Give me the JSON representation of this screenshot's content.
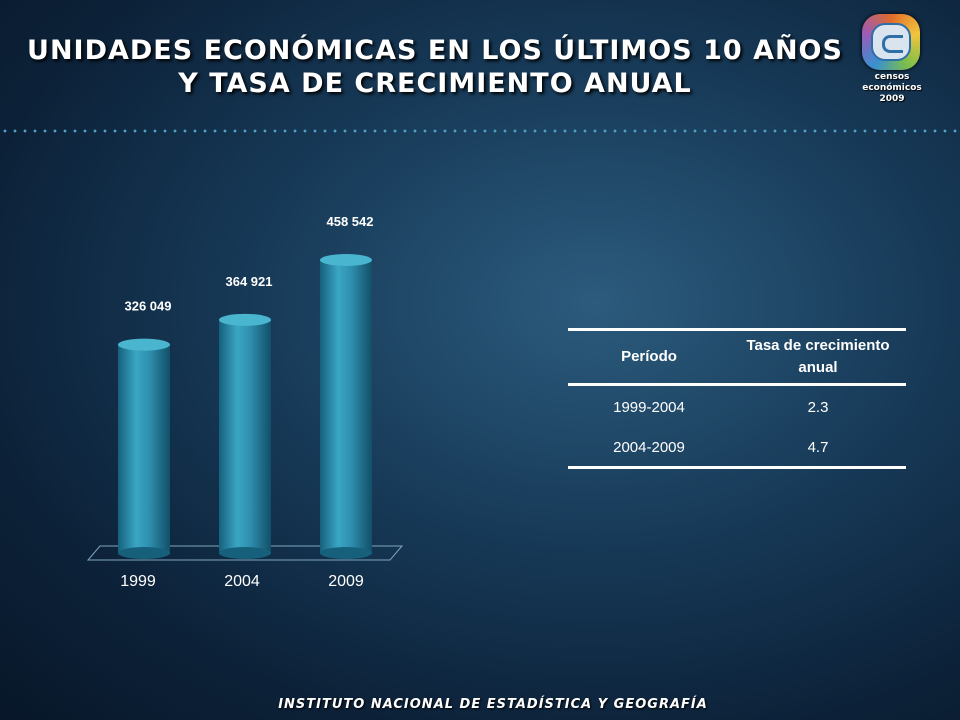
{
  "slide": {
    "title_line1": "UNIDADES ECONÓMICAS EN LOS ÚLTIMOS 10 AÑOS",
    "title_line2": "Y TASA DE CRECIMIENTO ANUAL",
    "footer": "INSTITUTO NACIONAL DE ESTADÍSTICA Y GEOGRAFÍA"
  },
  "logo": {
    "icon": "censos-economicos-logo-icon",
    "line1": "censos",
    "line2": "económicos",
    "line3": "2009"
  },
  "colors": {
    "bar": "#2e8fae",
    "bar_light": "#4ab5cf",
    "bar_dark": "#16607c"
  },
  "chart_data": {
    "type": "bar",
    "categories": [
      "1999",
      "2004",
      "2009"
    ],
    "values": [
      326049,
      364921,
      458542
    ],
    "value_labels": [
      "326 049",
      "364 921",
      "458 542"
    ],
    "title": "",
    "xlabel": "",
    "ylabel": "",
    "ylim": [
      0,
      500000
    ],
    "grid": false,
    "legend": "none"
  },
  "table": {
    "headers": [
      "Período",
      "Tasa de crecimiento anual"
    ],
    "rows": [
      [
        "1999-2004",
        "2.3"
      ],
      [
        "2004-2009",
        "4.7"
      ]
    ]
  }
}
